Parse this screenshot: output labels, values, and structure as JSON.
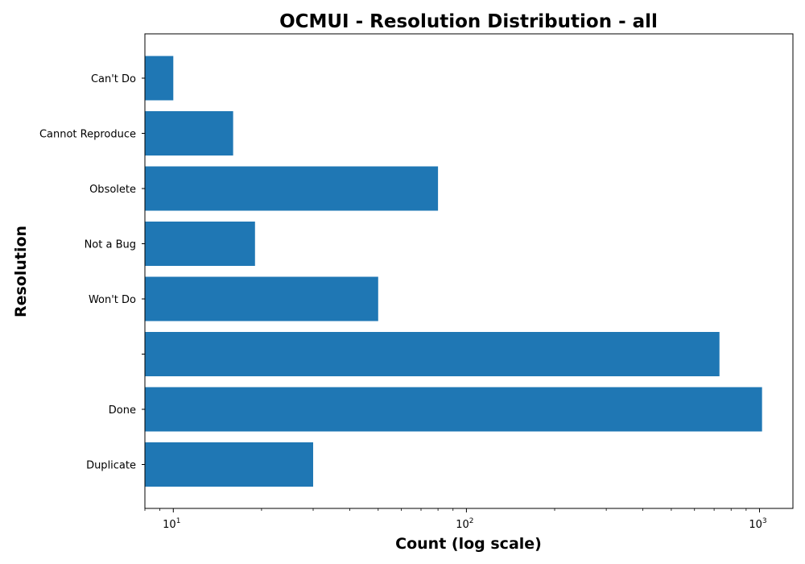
{
  "colors": {
    "bar": "#1f77b4",
    "axis": "#000000",
    "background": "#ffffff"
  },
  "chart_data": {
    "type": "bar",
    "orientation": "horizontal",
    "title": "OCMUI - Resolution Distribution - all",
    "xlabel": "Count (log scale)",
    "ylabel": "Resolution",
    "x_scale": "log",
    "xlim": [
      8,
      1300
    ],
    "x_ticks": [
      {
        "base": "10",
        "exp": "1",
        "value": 10
      },
      {
        "base": "10",
        "exp": "2",
        "value": 100
      },
      {
        "base": "10",
        "exp": "3",
        "value": 1000
      }
    ],
    "grid": false,
    "legend": "none",
    "categories": [
      "Can't Do",
      "Cannot Reproduce",
      "Obsolete",
      "Not a Bug",
      "Won't Do",
      "",
      "Done",
      "Duplicate"
    ],
    "values": [
      10,
      16,
      80,
      19,
      50,
      730,
      1020,
      30
    ]
  }
}
